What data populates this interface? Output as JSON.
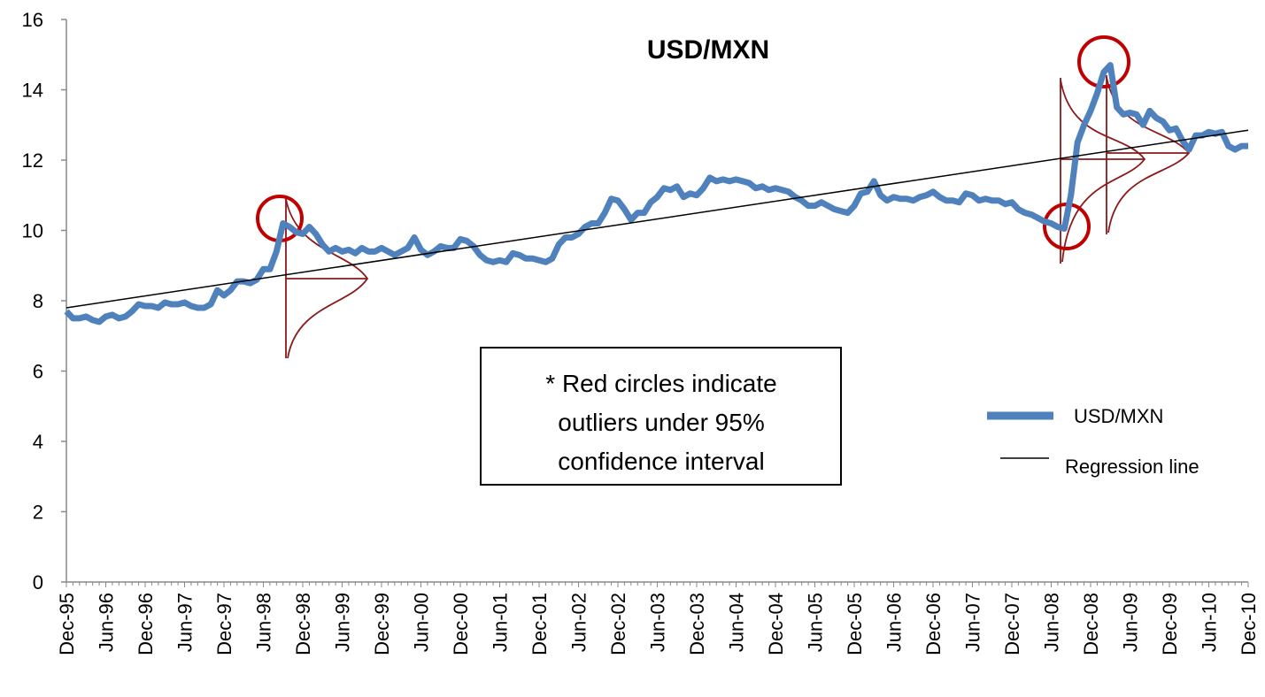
{
  "chart_data": {
    "type": "line",
    "title": "USD/MXN",
    "categories": [
      "Dec-95",
      null,
      null,
      null,
      null,
      null,
      "Jun-96",
      null,
      null,
      null,
      null,
      null,
      "Dec-96",
      null,
      null,
      null,
      null,
      null,
      "Jun-97",
      null,
      null,
      null,
      null,
      null,
      "Dec-97",
      null,
      null,
      null,
      null,
      null,
      "Jun-98",
      null,
      null,
      null,
      null,
      null,
      "Dec-98",
      null,
      null,
      null,
      null,
      null,
      "Jun-99",
      null,
      null,
      null,
      null,
      null,
      "Dec-99",
      null,
      null,
      null,
      null,
      null,
      "Jun-00",
      null,
      null,
      null,
      null,
      null,
      "Dec-00",
      null,
      null,
      null,
      null,
      null,
      "Jun-01",
      null,
      null,
      null,
      null,
      null,
      "Dec-01",
      null,
      null,
      null,
      null,
      null,
      "Jun-02",
      null,
      null,
      null,
      null,
      null,
      "Dec-02",
      null,
      null,
      null,
      null,
      null,
      "Jun-03",
      null,
      null,
      null,
      null,
      null,
      "Dec-03",
      null,
      null,
      null,
      null,
      null,
      "Jun-04",
      null,
      null,
      null,
      null,
      null,
      "Dec-04",
      null,
      null,
      null,
      null,
      null,
      "Jun-05",
      null,
      null,
      null,
      null,
      null,
      "Dec-05",
      null,
      null,
      null,
      null,
      null,
      "Jun-06",
      null,
      null,
      null,
      null,
      null,
      "Dec-06",
      null,
      null,
      null,
      null,
      null,
      "Jun-07",
      null,
      null,
      null,
      null,
      null,
      "Dec-07",
      null,
      null,
      null,
      null,
      null,
      "Jun-08",
      null,
      null,
      null,
      null,
      null,
      "Dec-08",
      null,
      null,
      null,
      null,
      null,
      "Jun-09",
      null,
      null,
      null,
      null,
      null,
      "Dec-09",
      null,
      null,
      null,
      null,
      null,
      "Jun-10",
      null,
      null,
      null,
      null,
      null,
      "Dec-10"
    ],
    "series": [
      {
        "name": "USD/MXN",
        "color": "#4f81bd",
        "values": [
          7.7,
          7.5,
          7.5,
          7.55,
          7.45,
          7.4,
          7.55,
          7.6,
          7.5,
          7.55,
          7.7,
          7.9,
          7.85,
          7.85,
          7.8,
          7.95,
          7.9,
          7.9,
          7.95,
          7.85,
          7.8,
          7.8,
          7.9,
          8.3,
          8.15,
          8.3,
          8.55,
          8.55,
          8.5,
          8.6,
          8.9,
          8.9,
          9.4,
          10.2,
          10.1,
          9.95,
          9.9,
          10.1,
          9.9,
          9.6,
          9.4,
          9.5,
          9.4,
          9.45,
          9.35,
          9.5,
          9.4,
          9.4,
          9.5,
          9.4,
          9.3,
          9.4,
          9.5,
          9.8,
          9.45,
          9.3,
          9.4,
          9.55,
          9.5,
          9.5,
          9.75,
          9.7,
          9.55,
          9.3,
          9.15,
          9.1,
          9.15,
          9.1,
          9.35,
          9.3,
          9.2,
          9.2,
          9.15,
          9.1,
          9.2,
          9.6,
          9.8,
          9.8,
          9.9,
          10.1,
          10.2,
          10.2,
          10.5,
          10.9,
          10.85,
          10.6,
          10.3,
          10.5,
          10.5,
          10.8,
          10.95,
          11.2,
          11.15,
          11.25,
          10.95,
          11.05,
          11.0,
          11.2,
          11.5,
          11.4,
          11.45,
          11.4,
          11.45,
          11.4,
          11.35,
          11.2,
          11.25,
          11.15,
          11.2,
          11.15,
          11.1,
          10.95,
          10.85,
          10.7,
          10.7,
          10.8,
          10.7,
          10.6,
          10.55,
          10.5,
          10.7,
          11.05,
          11.1,
          11.4,
          11.0,
          10.85,
          10.95,
          10.9,
          10.9,
          10.85,
          10.95,
          11.0,
          11.1,
          10.95,
          10.85,
          10.85,
          10.8,
          11.05,
          11.0,
          10.85,
          10.9,
          10.85,
          10.85,
          10.75,
          10.8,
          10.6,
          10.5,
          10.45,
          10.35,
          10.25,
          10.2,
          10.1,
          10.05,
          11.0,
          12.5,
          13.0,
          13.4,
          13.9,
          14.5,
          14.7,
          13.5,
          13.3,
          13.35,
          13.3,
          13.0,
          13.4,
          13.2,
          13.1,
          12.85,
          12.9,
          12.55,
          12.3,
          12.7,
          12.7,
          12.8,
          12.75,
          12.8,
          12.4,
          12.3,
          12.4,
          12.4
        ]
      }
    ],
    "regression": {
      "name": "Regression line",
      "color": "#000000",
      "values": [
        7.8,
        12.85
      ]
    },
    "ylim": [
      0,
      16
    ],
    "yticks": [
      0,
      2,
      4,
      6,
      8,
      10,
      12,
      14,
      16
    ],
    "legend": "right",
    "annotation": [
      "* Red circles indicate",
      "outliers under 95%",
      "confidence interval"
    ]
  }
}
